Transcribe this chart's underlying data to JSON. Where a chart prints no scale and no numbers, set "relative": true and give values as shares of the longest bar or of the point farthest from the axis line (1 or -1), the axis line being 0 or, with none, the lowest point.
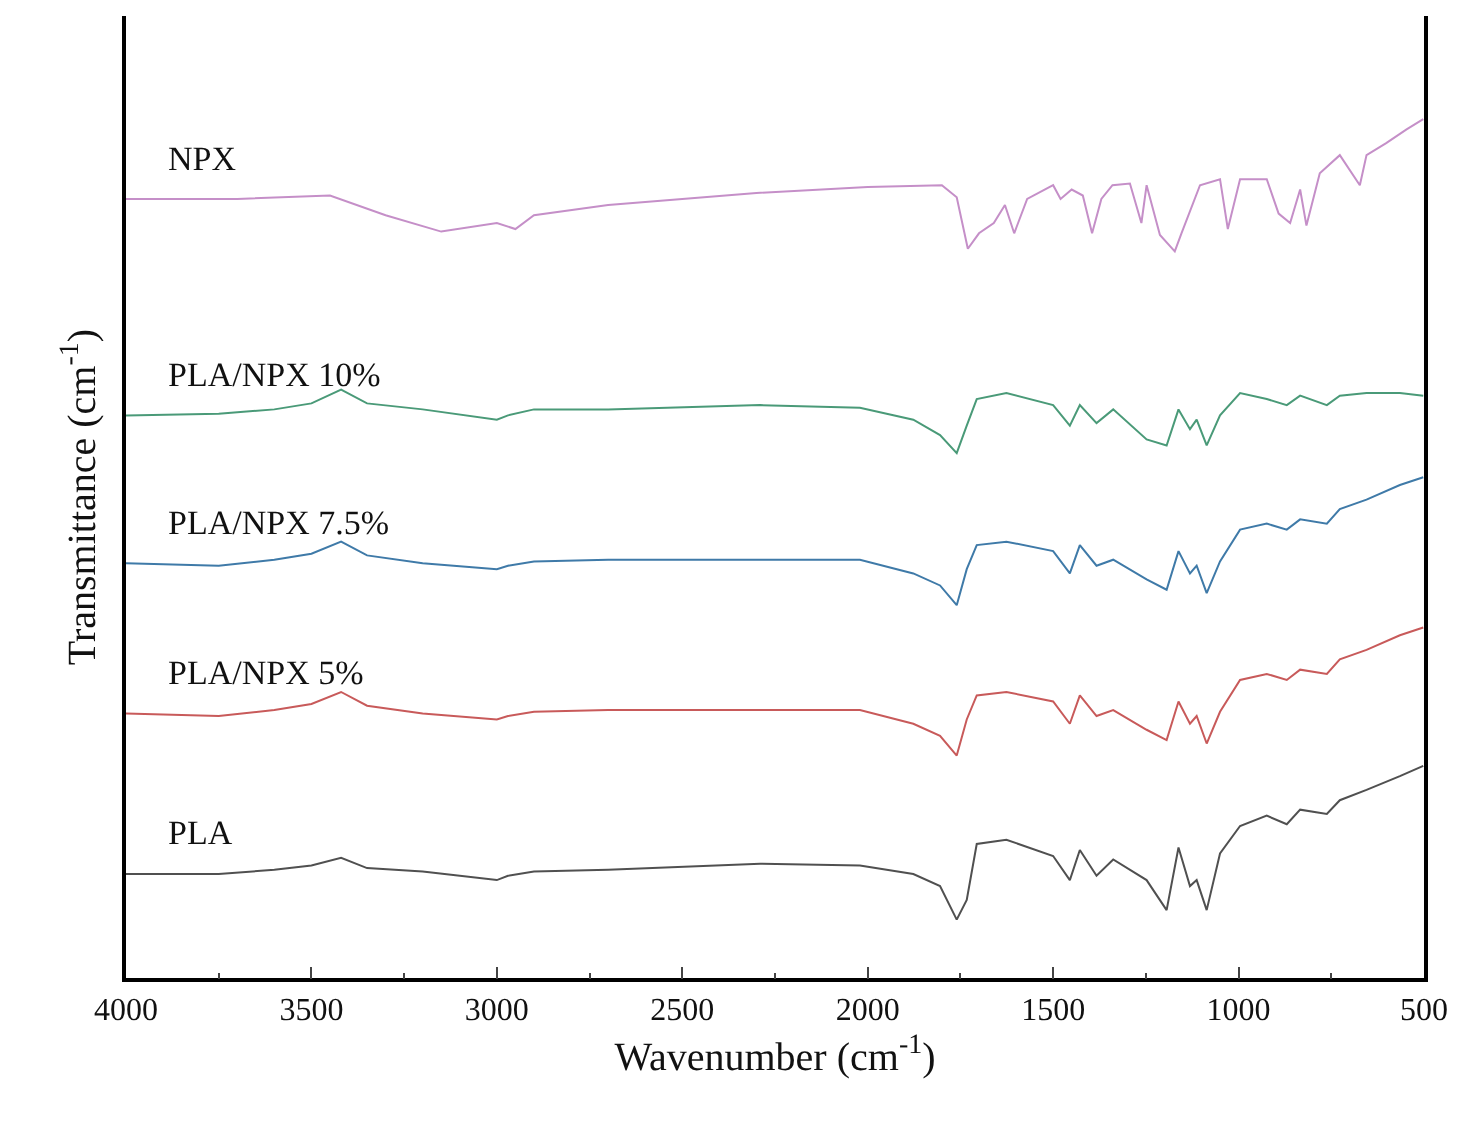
{
  "chart_data": {
    "type": "line",
    "relative": true,
    "xlabel": "Wavenumber (cm$^{-1}$)",
    "ylabel": "Transmittance (cm$^{-1}$)",
    "xlim": [
      4000,
      500
    ],
    "xticks": [
      4000,
      3500,
      3000,
      2500,
      2000,
      1500,
      1000,
      500
    ],
    "grid": false,
    "x": [
      4000,
      3750,
      3600,
      3500,
      3420,
      3350,
      3200,
      3000,
      2970,
      2900,
      2700,
      2290,
      2021,
      1877,
      1805,
      1760,
      1733,
      1706,
      1626,
      1500,
      1455,
      1428,
      1383,
      1338,
      1248,
      1194,
      1162,
      1131,
      1113,
      1086,
      1050,
      996,
      924,
      870,
      834,
      762,
      727,
      655,
      565,
      502
    ],
    "series": [
      {
        "name": "NPX",
        "color": "#c58fc8",
        "x": [
          4000,
          3700,
          3450,
          3300,
          3150,
          3000,
          2950,
          2900,
          2700,
          2300,
          2000,
          1800,
          1760,
          1730,
          1700,
          1660,
          1630,
          1605,
          1570,
          1500,
          1480,
          1450,
          1420,
          1395,
          1370,
          1340,
          1293,
          1262,
          1248,
          1212,
          1172,
          1154,
          1104,
          1050,
          1029,
          996,
          924,
          892,
          861,
          834,
          817,
          781,
          727,
          673,
          655,
          602,
          547,
          502
        ],
        "values": [
          0.907,
          0.907,
          0.911,
          0.888,
          0.869,
          0.879,
          0.872,
          0.888,
          0.9,
          0.914,
          0.921,
          0.923,
          0.909,
          0.849,
          0.867,
          0.879,
          0.9,
          0.867,
          0.907,
          0.923,
          0.907,
          0.918,
          0.911,
          0.867,
          0.907,
          0.923,
          0.925,
          0.879,
          0.923,
          0.865,
          0.846,
          0.867,
          0.923,
          0.93,
          0.872,
          0.93,
          0.93,
          0.89,
          0.879,
          0.918,
          0.876,
          0.937,
          0.958,
          0.923,
          0.958,
          0.972,
          0.988,
          1.0
        ]
      },
      {
        "name": "PLA/NPX 10%",
        "color": "#4a9a78",
        "values": [
          0.655,
          0.657,
          0.662,
          0.669,
          0.685,
          0.669,
          0.662,
          0.65,
          0.655,
          0.662,
          0.662,
          0.667,
          0.664,
          0.65,
          0.632,
          0.611,
          0.643,
          0.674,
          0.681,
          0.667,
          0.643,
          0.667,
          0.646,
          0.662,
          0.627,
          0.62,
          0.662,
          0.639,
          0.65,
          0.62,
          0.655,
          0.681,
          0.674,
          0.667,
          0.678,
          0.667,
          0.678,
          0.681,
          0.681,
          0.678
        ]
      },
      {
        "name": "PLA/NPX 7.5%",
        "color": "#3f7aa8",
        "values": [
          0.483,
          0.48,
          0.487,
          0.494,
          0.508,
          0.492,
          0.483,
          0.476,
          0.48,
          0.485,
          0.487,
          0.487,
          0.487,
          0.471,
          0.457,
          0.434,
          0.476,
          0.504,
          0.508,
          0.497,
          0.471,
          0.504,
          0.48,
          0.487,
          0.464,
          0.452,
          0.497,
          0.471,
          0.48,
          0.448,
          0.485,
          0.522,
          0.529,
          0.522,
          0.534,
          0.529,
          0.546,
          0.557,
          0.574,
          0.583
        ]
      },
      {
        "name": "PLA/NPX 5%",
        "color": "#c85a5a",
        "values": [
          0.308,
          0.305,
          0.312,
          0.319,
          0.333,
          0.317,
          0.308,
          0.301,
          0.305,
          0.31,
          0.312,
          0.312,
          0.312,
          0.296,
          0.282,
          0.259,
          0.301,
          0.329,
          0.333,
          0.322,
          0.296,
          0.329,
          0.305,
          0.312,
          0.289,
          0.277,
          0.322,
          0.296,
          0.305,
          0.273,
          0.31,
          0.347,
          0.354,
          0.347,
          0.359,
          0.354,
          0.371,
          0.382,
          0.399,
          0.408
        ]
      },
      {
        "name": "PLA",
        "color": "#505050",
        "values": [
          0.121,
          0.121,
          0.126,
          0.131,
          0.14,
          0.128,
          0.124,
          0.114,
          0.119,
          0.124,
          0.126,
          0.133,
          0.131,
          0.121,
          0.107,
          0.068,
          0.091,
          0.156,
          0.161,
          0.142,
          0.114,
          0.149,
          0.119,
          0.138,
          0.114,
          0.079,
          0.152,
          0.107,
          0.114,
          0.079,
          0.145,
          0.177,
          0.189,
          0.179,
          0.196,
          0.191,
          0.207,
          0.219,
          0.235,
          0.247
        ]
      }
    ]
  }
}
